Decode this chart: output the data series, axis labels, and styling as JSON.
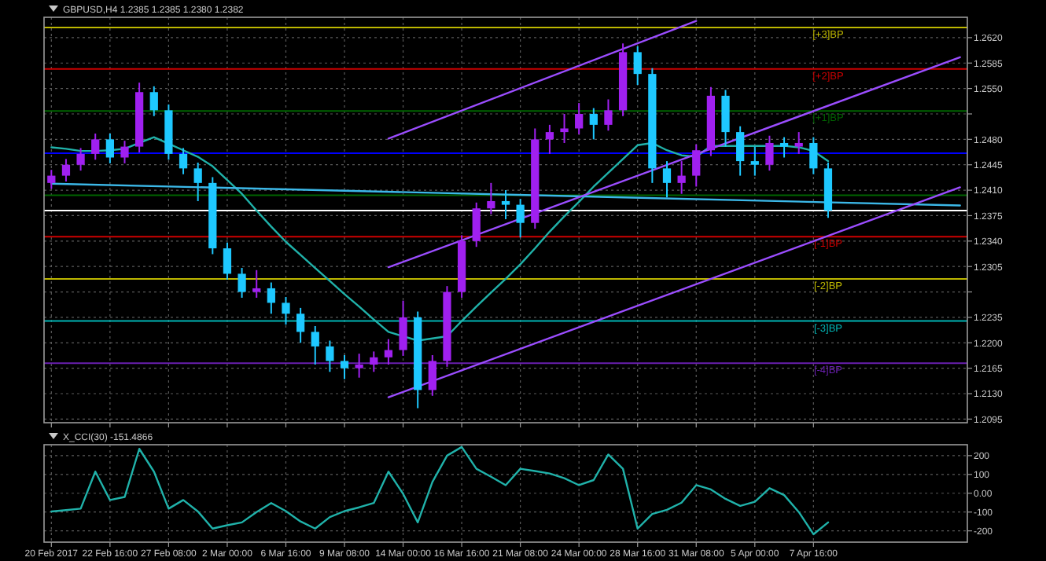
{
  "chart_data": [
    {
      "type": "candlestick",
      "title": "GBPUSD,H4  1.2385 1.2385 1.2380 1.2382",
      "grid": true,
      "tick_labels": "y",
      "ylim": [
        1.209,
        1.2648
      ],
      "categories": [
        null,
        null,
        null,
        null,
        null,
        null,
        null,
        null,
        null,
        null,
        null,
        null,
        null,
        null,
        null,
        null,
        null,
        null,
        null,
        null,
        null,
        null,
        null,
        null,
        null,
        null,
        null,
        null,
        null,
        null,
        null,
        null,
        null,
        null,
        null,
        null,
        null,
        null,
        null,
        null,
        null,
        null,
        null,
        null,
        null,
        null,
        null,
        null,
        null,
        null,
        null,
        null,
        null,
        null,
        null,
        null,
        null,
        null,
        null,
        null,
        null,
        null,
        null
      ],
      "yticks": [
        {
          "value": 1.2095,
          "label": "1.2095"
        },
        {
          "value": 1.213,
          "label": "1.2130"
        },
        {
          "value": 1.2165,
          "label": "1.2165"
        },
        {
          "value": 1.22,
          "label": "1.2200"
        },
        {
          "value": 1.2235,
          "label": "1.2235"
        },
        {
          "value": 1.227,
          "label": null
        },
        {
          "value": 1.2305,
          "label": "1.2305"
        },
        {
          "value": 1.234,
          "label": "1.2340"
        },
        {
          "value": 1.2375,
          "label": "1.2375"
        },
        {
          "value": 1.241,
          "label": "1.2410"
        },
        {
          "value": 1.2445,
          "label": "1.2445"
        },
        {
          "value": 1.248,
          "label": "1.2480"
        },
        {
          "value": 1.2515,
          "label": null
        },
        {
          "value": 1.255,
          "label": "1.2550"
        },
        {
          "value": 1.2585,
          "label": "1.2585"
        },
        {
          "value": 1.262,
          "label": "1.2620"
        }
      ],
      "ohlc": [
        [
          1.242,
          1.2438,
          1.2412,
          1.243
        ],
        [
          1.243,
          1.2453,
          1.2422,
          1.2445
        ],
        [
          1.2445,
          1.2468,
          1.2437,
          1.246
        ],
        [
          1.246,
          1.2488,
          1.2452,
          1.248
        ],
        [
          1.248,
          1.2488,
          1.2447,
          1.2455
        ],
        [
          1.2455,
          1.2478,
          1.2447,
          1.247
        ],
        [
          1.247,
          1.2558,
          1.2462,
          1.2545
        ],
        [
          1.2545,
          1.2553,
          1.2512,
          1.252
        ],
        [
          1.252,
          1.2528,
          1.2452,
          1.246
        ],
        [
          1.246,
          1.2468,
          1.2432,
          1.244
        ],
        [
          1.244,
          1.2448,
          1.2395,
          1.242
        ],
        [
          1.242,
          1.2428,
          1.2322,
          1.233
        ],
        [
          1.233,
          1.2338,
          1.2287,
          1.2295
        ],
        [
          1.2295,
          1.2303,
          1.2262,
          1.227
        ],
        [
          1.227,
          1.23,
          1.2262,
          1.2275
        ],
        [
          1.2275,
          1.2283,
          1.224,
          1.2255
        ],
        [
          1.2255,
          1.2263,
          1.2225,
          1.224
        ],
        [
          1.224,
          1.2248,
          1.22,
          1.2215
        ],
        [
          1.2215,
          1.2223,
          1.217,
          1.2195
        ],
        [
          1.2195,
          1.2203,
          1.216,
          1.2175
        ],
        [
          1.2175,
          1.2183,
          1.215,
          1.2165
        ],
        [
          1.2165,
          1.2185,
          1.2152,
          1.217
        ],
        [
          1.217,
          1.2188,
          1.216,
          1.218
        ],
        [
          1.218,
          1.2205,
          1.217,
          1.219
        ],
        [
          1.219,
          1.2258,
          1.2182,
          1.2235
        ],
        [
          1.2235,
          1.2243,
          1.211,
          1.2135
        ],
        [
          1.2135,
          1.2183,
          1.2127,
          1.2175
        ],
        [
          1.2175,
          1.2278,
          1.2167,
          1.227
        ],
        [
          1.227,
          1.2348,
          1.2262,
          1.234
        ],
        [
          1.234,
          1.2393,
          1.2332,
          1.2385
        ],
        [
          1.2385,
          1.242,
          1.2377,
          1.2395
        ],
        [
          1.2395,
          1.241,
          1.237,
          1.239
        ],
        [
          1.239,
          1.2398,
          1.2345,
          1.2365
        ],
        [
          1.2365,
          1.2495,
          1.2357,
          1.248
        ],
        [
          1.248,
          1.25,
          1.246,
          1.249
        ],
        [
          1.249,
          1.2515,
          1.2475,
          1.2495
        ],
        [
          1.2495,
          1.253,
          1.2487,
          1.2515
        ],
        [
          1.2515,
          1.2523,
          1.248,
          1.25
        ],
        [
          1.25,
          1.2535,
          1.2492,
          1.252
        ],
        [
          1.252,
          1.2612,
          1.2512,
          1.26
        ],
        [
          1.26,
          1.2608,
          1.2555,
          1.257
        ],
        [
          1.257,
          1.2578,
          1.242,
          1.244
        ],
        [
          1.244,
          1.245,
          1.24,
          1.242
        ],
        [
          1.242,
          1.245,
          1.2405,
          1.243
        ],
        [
          1.243,
          1.2473,
          1.2415,
          1.2465
        ],
        [
          1.2465,
          1.2552,
          1.2457,
          1.254
        ],
        [
          1.254,
          1.2548,
          1.247,
          1.249
        ],
        [
          1.249,
          1.2498,
          1.243,
          1.245
        ],
        [
          1.245,
          1.247,
          1.243,
          1.2445
        ],
        [
          1.2445,
          1.2485,
          1.2437,
          1.2475
        ],
        [
          1.2475,
          1.2483,
          1.2455,
          1.247
        ],
        [
          1.247,
          1.249,
          1.246,
          1.2475
        ],
        [
          1.2475,
          1.2483,
          1.2432,
          1.244
        ],
        [
          1.244,
          1.2448,
          1.2372,
          1.2382
        ],
        null,
        null,
        null,
        null,
        null,
        null,
        null,
        null,
        null
      ],
      "colors": [
        "#a020f0",
        "#a020f0",
        "#a020f0",
        "#a020f0",
        "#1ec8ff",
        "#a020f0",
        "#a020f0",
        "#1ec8ff",
        "#1ec8ff",
        "#1ec8ff",
        "#1ec8ff",
        "#1ec8ff",
        "#1ec8ff",
        "#1ec8ff",
        "#a020f0",
        "#1ec8ff",
        "#1ec8ff",
        "#1ec8ff",
        "#1ec8ff",
        "#1ec8ff",
        "#1ec8ff",
        "#a020f0",
        "#a020f0",
        "#a020f0",
        "#a020f0",
        "#1ec8ff",
        "#a020f0",
        "#a020f0",
        "#a020f0",
        "#a020f0",
        "#a020f0",
        "#1ec8ff",
        "#1ec8ff",
        "#a020f0",
        "#a020f0",
        "#a020f0",
        "#a020f0",
        "#1ec8ff",
        "#a020f0",
        "#a020f0",
        "#1ec8ff",
        "#1ec8ff",
        "#1ec8ff",
        "#a020f0",
        "#a020f0",
        "#a020f0",
        "#1ec8ff",
        "#1ec8ff",
        "#1ec8ff",
        "#a020f0",
        "#1ec8ff",
        "#a020f0",
        "#1ec8ff",
        "#1ec8ff",
        null,
        null,
        null,
        null,
        null,
        null,
        null,
        null,
        null
      ],
      "series": [
        {
          "type": "line",
          "color": "#20b2aa",
          "values": [
            1.2469,
            1.2467,
            1.2464,
            1.2464,
            1.2465,
            1.2467,
            1.2475,
            1.2483,
            1.2474,
            1.2465,
            1.2456,
            1.2443,
            1.2424,
            1.2405,
            1.2382,
            1.236,
            1.2339,
            1.2321,
            1.2303,
            1.2285,
            1.2267,
            1.225,
            1.2232,
            1.2215,
            1.2209,
            1.2203,
            1.2206,
            1.2209,
            1.223,
            1.225,
            1.2269,
            1.2288,
            1.2308,
            1.233,
            1.2353,
            1.2374,
            1.2394,
            1.2415,
            1.2434,
            1.2453,
            1.2472,
            1.2475,
            1.2465,
            1.2458,
            1.2456,
            1.2471,
            1.2471,
            1.2471,
            1.2471,
            1.2471,
            1.2471,
            1.2469,
            1.2464,
            1.245,
            null,
            null,
            null,
            null,
            null,
            null,
            null,
            null,
            null
          ]
        },
        {
          "type": "line",
          "color": "#3cb8e8",
          "values": [
            1.2419,
            null,
            null,
            null,
            null,
            null,
            null,
            null,
            null,
            null,
            null,
            null,
            null,
            null,
            null,
            null,
            null,
            null,
            null,
            null,
            null,
            null,
            null,
            null,
            null,
            null,
            null,
            null,
            null,
            null,
            null,
            null,
            null,
            null,
            null,
            null,
            null,
            null,
            null,
            null,
            null,
            null,
            null,
            null,
            null,
            null,
            null,
            null,
            null,
            null,
            null,
            null,
            null,
            null,
            null,
            null,
            null,
            null,
            null,
            null,
            null,
            null,
            1.2389
          ]
        },
        {
          "type": "line",
          "color": "#9b4dff",
          "values": [
            null,
            null,
            null,
            null,
            null,
            null,
            null,
            null,
            null,
            null,
            null,
            null,
            null,
            null,
            null,
            null,
            null,
            null,
            null,
            null,
            null,
            null,
            null,
            1.2481,
            null,
            null,
            null,
            null,
            null,
            null,
            null,
            null,
            null,
            null,
            null,
            null,
            null,
            null,
            null,
            null,
            null,
            null,
            null,
            null,
            1.2643,
            null,
            null,
            null,
            null,
            null,
            null,
            null,
            null,
            null,
            null,
            null,
            null,
            null,
            null,
            null,
            null,
            null,
            null
          ]
        },
        {
          "type": "line",
          "color": "#9b4dff",
          "values": [
            null,
            null,
            null,
            null,
            null,
            null,
            null,
            null,
            null,
            null,
            null,
            null,
            null,
            null,
            null,
            null,
            null,
            null,
            null,
            null,
            null,
            null,
            null,
            1.2304,
            null,
            null,
            null,
            null,
            null,
            null,
            null,
            null,
            null,
            null,
            null,
            null,
            null,
            null,
            null,
            null,
            null,
            null,
            null,
            null,
            null,
            null,
            null,
            null,
            null,
            null,
            null,
            null,
            null,
            null,
            null,
            null,
            null,
            null,
            null,
            null,
            null,
            null,
            1.2593
          ]
        },
        {
          "type": "line",
          "color": "#9b4dff",
          "values": [
            null,
            null,
            null,
            null,
            null,
            null,
            null,
            null,
            null,
            null,
            null,
            null,
            null,
            null,
            null,
            null,
            null,
            null,
            null,
            null,
            null,
            null,
            null,
            1.2125,
            null,
            null,
            null,
            null,
            null,
            null,
            null,
            null,
            null,
            null,
            null,
            null,
            null,
            null,
            null,
            null,
            null,
            null,
            null,
            null,
            null,
            null,
            null,
            null,
            null,
            null,
            null,
            null,
            null,
            null,
            null,
            null,
            null,
            null,
            null,
            null,
            null,
            null,
            1.2414
          ]
        }
      ],
      "ref_lines": [
        {
          "axis": "y",
          "value": 1.2634,
          "label": "[+3]BP",
          "color": "#bdb700"
        },
        {
          "axis": "y",
          "value": 1.2577,
          "label": "[+2]BP",
          "color": "#cc0000"
        },
        {
          "axis": "y",
          "value": 1.2519,
          "label": "[+1]BP",
          "color": "#006400"
        },
        {
          "axis": "y",
          "value": 1.2461,
          "label": null,
          "color": "#0000ff"
        },
        {
          "axis": "y",
          "value": 1.2403,
          "label": null,
          "color": "#006400"
        },
        {
          "axis": "y",
          "value": 1.2382,
          "label": null,
          "color": "#ffffff"
        },
        {
          "axis": "y",
          "value": 1.2346,
          "label": "[-1]BP",
          "color": "#cc0000"
        },
        {
          "axis": "y",
          "value": 1.2288,
          "label": "[-2]BP",
          "color": "#bdb700"
        },
        {
          "axis": "y",
          "value": 1.223,
          "label": "[-3]BP",
          "color": "#00b3b3"
        },
        {
          "axis": "y",
          "value": 1.2172,
          "label": "[-4]BP",
          "color": "#6a1fb0"
        }
      ]
    },
    {
      "type": "line",
      "title": "X_CCI(30) -151.4866",
      "grid": true,
      "ylim": [
        -260,
        258
      ],
      "categories": [
        "20 Feb 2017",
        null,
        null,
        null,
        "22 Feb 16:00",
        null,
        null,
        null,
        "27 Feb 08:00",
        null,
        null,
        null,
        "2 Mar 00:00",
        null,
        null,
        null,
        "6 Mar 16:00",
        null,
        null,
        null,
        "9 Mar 08:00",
        null,
        null,
        null,
        "14 Mar 00:00",
        null,
        null,
        null,
        "16 Mar 16:00",
        null,
        null,
        null,
        "21 Mar 08:00",
        null,
        null,
        null,
        "24 Mar 00:00",
        null,
        null,
        null,
        "28 Mar 16:00",
        null,
        null,
        null,
        "31 Mar 08:00",
        null,
        null,
        null,
        "5 Apr 00:00",
        null,
        null,
        null,
        "7 Apr 16:00",
        null,
        null,
        null,
        null,
        null,
        null,
        null,
        null,
        null,
        null
      ],
      "yticks": [
        200,
        100,
        {
          "value": 0,
          "label": "0.00"
        },
        -100,
        -200
      ],
      "series": [
        {
          "color": "#20b2aa",
          "values": [
            -97,
            -90,
            -82,
            115,
            -36,
            -20,
            236,
            115,
            -82,
            -36,
            -97,
            -188,
            -170,
            -155,
            -100,
            -52,
            -95,
            -150,
            -188,
            -127,
            -95,
            -75,
            -52,
            115,
            -3,
            -155,
            60,
            200,
            246,
            130,
            88,
            43,
            130,
            118,
            105,
            80,
            43,
            70,
            206,
            130,
            -188,
            -110,
            -88,
            -50,
            43,
            20,
            -30,
            -67,
            -45,
            27,
            -10,
            -100,
            -218,
            -155,
            null,
            null,
            null,
            null,
            null,
            null,
            null,
            null,
            null
          ]
        }
      ]
    }
  ]
}
